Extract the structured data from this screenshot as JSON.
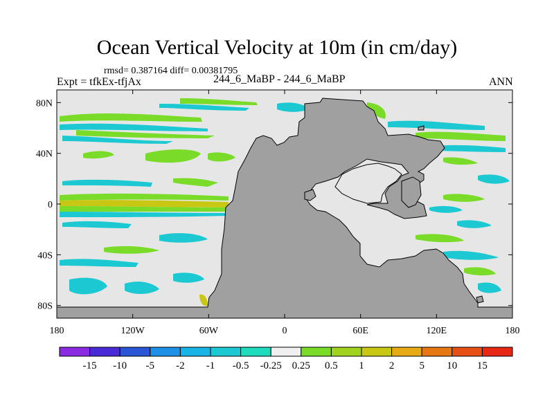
{
  "header": {
    "title": "Ocean Vertical Velocity at 10m (in cm/day)",
    "stats": "rmsd= 0.387164 diff= 0.00381795",
    "left_label": "Expt = tfkEx-tfjAx",
    "center_label": "244_6_MaBP - 244_6_MaBP",
    "right_label": "ANN"
  },
  "map": {
    "lon_range": [
      -180,
      180
    ],
    "lat_range": [
      -90,
      90
    ],
    "lat_ticks": [
      {
        "value": 80,
        "label": "80N"
      },
      {
        "value": 40,
        "label": "40N"
      },
      {
        "value": 0,
        "label": "0"
      },
      {
        "value": -40,
        "label": "40S"
      },
      {
        "value": -80,
        "label": "80S"
      }
    ],
    "lon_ticks": [
      {
        "value": -180,
        "label": "180"
      },
      {
        "value": -120,
        "label": "120W"
      },
      {
        "value": -60,
        "label": "60W"
      },
      {
        "value": 0,
        "label": "0"
      },
      {
        "value": 60,
        "label": "60E"
      },
      {
        "value": 120,
        "label": "120E"
      },
      {
        "value": 180,
        "label": "180"
      }
    ],
    "land_color": "#a0a0a0",
    "ocean_color": "#e6e6e6"
  },
  "colorbar": {
    "labels": [
      "-15",
      "-10",
      "-5",
      "-2",
      "-1",
      "-0.5",
      "-0.25",
      "0.25",
      "0.5",
      "1",
      "2",
      "5",
      "10",
      "15"
    ],
    "colors": [
      "#8a2be2",
      "#4a2ad6",
      "#2a55d6",
      "#1e90e6",
      "#18b4e6",
      "#1cc8d2",
      "#20dcbe",
      "#f0f0f0",
      "#7adc28",
      "#a0d21e",
      "#c8c814",
      "#e6aa14",
      "#e67814",
      "#e65014",
      "#e62814"
    ]
  }
}
